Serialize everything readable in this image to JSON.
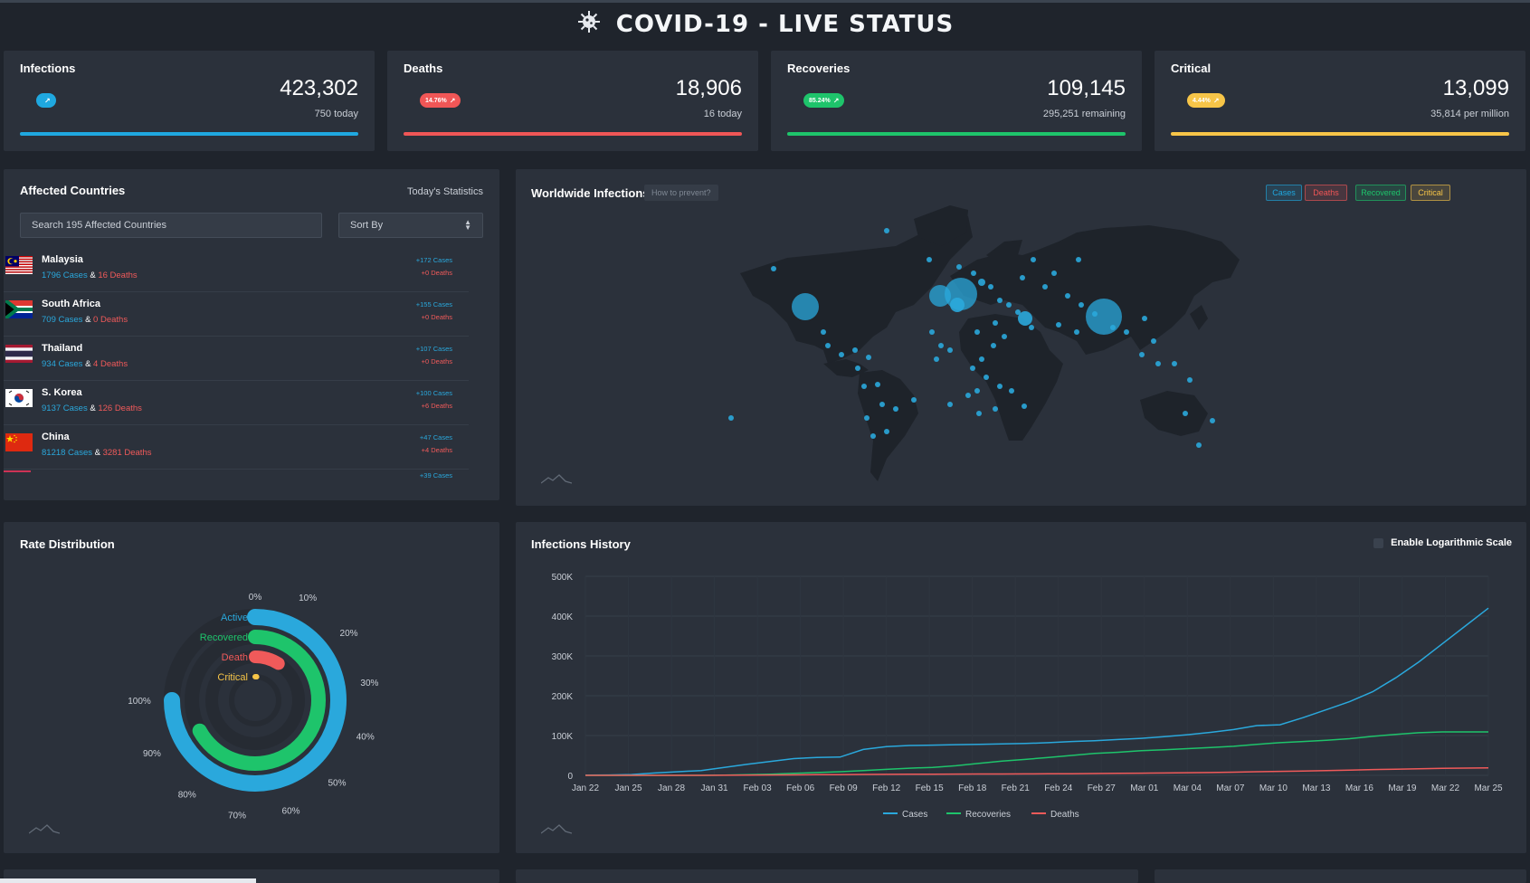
{
  "header": {
    "title": "COVID-19 - LIVE STATUS",
    "icon": "virus-icon"
  },
  "stats": [
    {
      "key": "infections",
      "title": "Infections",
      "value": "423,302",
      "sub": "750 today",
      "pill": "",
      "color": "#1fa8e0",
      "pill_color": "#1fa8e0"
    },
    {
      "key": "deaths",
      "title": "Deaths",
      "value": "18,906",
      "sub": "16 today",
      "pill": "14.76%",
      "color": "#f05656",
      "pill_color": "#f05656"
    },
    {
      "key": "recoveries",
      "title": "Recoveries",
      "value": "109,145",
      "sub": "295,251 remaining",
      "pill": "85.24%",
      "color": "#1ec46b",
      "pill_color": "#1ec46b"
    },
    {
      "key": "critical",
      "title": "Critical",
      "value": "13,099",
      "sub": "35,814 per million",
      "pill": "4.44%",
      "color": "#f7c548",
      "pill_color": "#f7c548"
    }
  ],
  "affected": {
    "title": "Affected Countries",
    "today_label": "Today's Statistics",
    "search_placeholder": "Search 195 Affected Countries",
    "sort_label": "Sort By",
    "cases_word": "Cases",
    "deaths_word": "Deaths",
    "amp": "&",
    "countries": [
      {
        "name": "Malaysia",
        "cases": "1796 Cases",
        "deaths": "16 Deaths",
        "today_cases": "+172 Cases",
        "today_deaths": "+0 Deaths",
        "flag": "malaysia-flag-icon"
      },
      {
        "name": "South Africa",
        "cases": "709 Cases",
        "deaths": "0 Deaths",
        "today_cases": "+155 Cases",
        "today_deaths": "+0 Deaths",
        "flag": "south-africa-flag-icon"
      },
      {
        "name": "Thailand",
        "cases": "934 Cases",
        "deaths": "4 Deaths",
        "today_cases": "+107 Cases",
        "today_deaths": "+0 Deaths",
        "flag": "thailand-flag-icon"
      },
      {
        "name": "S. Korea",
        "cases": "9137 Cases",
        "deaths": "126 Deaths",
        "today_cases": "+100 Cases",
        "today_deaths": "+6 Deaths",
        "flag": "south-korea-flag-icon"
      },
      {
        "name": "China",
        "cases": "81218 Cases",
        "deaths": "3281 Deaths",
        "today_cases": "+47 Cases",
        "today_deaths": "+4 Deaths",
        "flag": "china-flag-icon"
      }
    ],
    "partial_next": "+39 Cases"
  },
  "map": {
    "title": "Worldwide Infections",
    "prevent_button": "How to prevent?",
    "toggles": [
      {
        "label": "Cases",
        "color": "#1fa8e0"
      },
      {
        "label": "Deaths",
        "color": "#f05656"
      },
      {
        "label": "Recovered",
        "color": "#1ec46b"
      },
      {
        "label": "Critical",
        "color": "#f7c548"
      }
    ]
  },
  "rate": {
    "title": "Rate Distribution",
    "labels": [
      {
        "label": "Active",
        "color": "#2aa8dc"
      },
      {
        "label": "Recovered",
        "color": "#1ec46b"
      },
      {
        "label": "Death",
        "color": "#f05a5a"
      },
      {
        "label": "Critical",
        "color": "#f7c548"
      }
    ],
    "ticks": [
      "0%",
      "10%",
      "20%",
      "30%",
      "40%",
      "50%",
      "60%",
      "70%",
      "80%",
      "90%",
      "100%"
    ],
    "values": [
      0.75,
      0.67,
      0.09,
      0.01
    ]
  },
  "history": {
    "title": "Infections History",
    "log_label": "Enable Logarithmic Scale"
  },
  "chart_data": {
    "type": "line",
    "ylim": [
      0,
      500000
    ],
    "y_ticks": [
      "0",
      "100K",
      "200K",
      "300K",
      "400K",
      "500K"
    ],
    "x_ticks": [
      "Jan 22",
      "Jan 25",
      "Jan 28",
      "Jan 31",
      "Feb 03",
      "Feb 06",
      "Feb 09",
      "Feb 12",
      "Feb 15",
      "Feb 18",
      "Feb 21",
      "Feb 24",
      "Feb 27",
      "Mar 01",
      "Mar 04",
      "Mar 07",
      "Mar 10",
      "Mar 13",
      "Mar 16",
      "Mar 19",
      "Mar 22",
      "Mar 25"
    ],
    "series": [
      {
        "name": "Cases",
        "color": "#2aa8dc",
        "values": [
          500,
          1000,
          2000,
          6000,
          9000,
          12000,
          20000,
          28000,
          35000,
          42000,
          45000,
          46000,
          65000,
          72000,
          75000,
          76000,
          77000,
          78000,
          79000,
          80000,
          82000,
          85000,
          87000,
          90000,
          93000,
          97000,
          102000,
          108000,
          115000,
          125000,
          127000,
          145000,
          165000,
          185000,
          210000,
          245000,
          285000,
          330000,
          375000,
          420000
        ]
      },
      {
        "name": "Recoveries",
        "color": "#1ec46b",
        "values": [
          0,
          0,
          0,
          0,
          0,
          0,
          500,
          1500,
          3000,
          5000,
          7000,
          9000,
          12000,
          15000,
          18000,
          20000,
          24000,
          30000,
          36000,
          40000,
          45000,
          50000,
          55000,
          58000,
          62000,
          64000,
          67000,
          70000,
          73000,
          78000,
          82000,
          85000,
          88000,
          92000,
          98000,
          103000,
          107000,
          109000,
          109000,
          109145
        ]
      },
      {
        "name": "Deaths",
        "color": "#f05a5a",
        "values": [
          0,
          0,
          0,
          0,
          0,
          0,
          200,
          500,
          800,
          1200,
          1500,
          1800,
          2200,
          2500,
          2800,
          3000,
          3200,
          3400,
          3500,
          3600,
          3800,
          4000,
          4500,
          5000,
          5500,
          6000,
          6500,
          7000,
          8000,
          9000,
          10000,
          11000,
          12000,
          13000,
          14500,
          15500,
          16500,
          17500,
          18200,
          18906
        ]
      }
    ]
  }
}
